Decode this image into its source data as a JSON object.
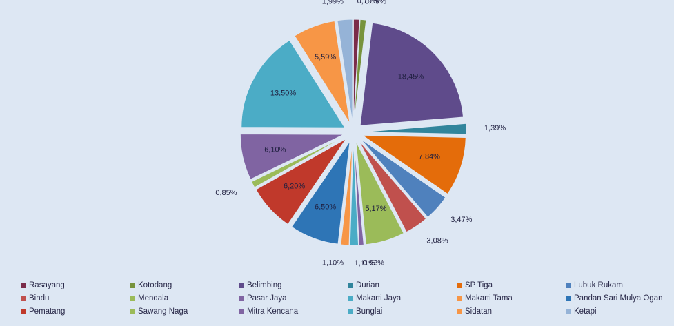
{
  "chart_data": {
    "type": "pie",
    "categories": [
      "Rasayang",
      "Kotodang",
      "Belimbing",
      "Durian",
      "SP Tiga",
      "Lubuk Rukam",
      "Bindu",
      "Mendala",
      "Pasar Jaya",
      "Makarti Jaya",
      "Makarti Tama",
      "Pandan Sari Mulya Ogan",
      "Pematang",
      "Sawang Naga",
      "Mitra Kencana",
      "Bunglai",
      "Sidatan",
      "Ketapi"
    ],
    "values": [
      0.79,
      0.79,
      18.45,
      1.39,
      7.84,
      3.47,
      3.08,
      5.17,
      0.62,
      1.11,
      1.1,
      6.5,
      6.2,
      0.85,
      6.1,
      13.5,
      5.59,
      1.99
    ],
    "value_labels": [
      "0,79%",
      "0,79%",
      "18,45%",
      "1,39%",
      "7,84%",
      "3,47%",
      "3,08%",
      "5,17%",
      "0,62%",
      "1,11%",
      "1,10%",
      "6,50%",
      "6,20%",
      "0,85%",
      "6,10%",
      "13,50%",
      "5,59%",
      "1,99%"
    ],
    "colors": [
      "#7b2c4a",
      "#77933c",
      "#5f4b8b",
      "#31859c",
      "#e46c0a",
      "#4f81bd",
      "#c0504d",
      "#9bbb59",
      "#8064a2",
      "#4bacc6",
      "#f79646",
      "#2e75b6",
      "#c0392b",
      "#9bbb59",
      "#8064a2",
      "#4bacc6",
      "#f79646",
      "#95b3d7"
    ]
  }
}
